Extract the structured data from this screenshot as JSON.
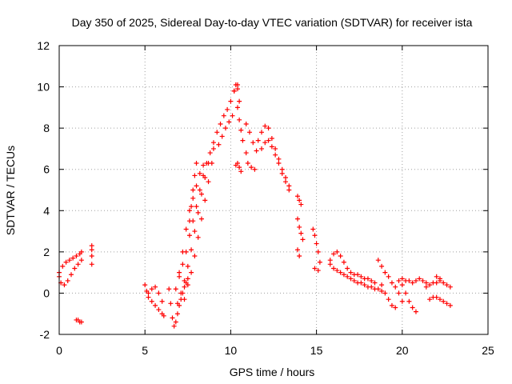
{
  "chart_data": {
    "type": "scatter",
    "title": "Day 350 of 2025, Sidereal Day-to-day VTEC variation (SDTVAR) for receiver ista",
    "xlabel": "GPS time / hours",
    "ylabel": "SDTVAR / TECUs",
    "xlim": [
      0,
      25
    ],
    "ylim": [
      -2,
      12
    ],
    "xticks": [
      0,
      5,
      10,
      15,
      20,
      25
    ],
    "yticks": [
      -2,
      0,
      2,
      4,
      6,
      8,
      10,
      12
    ],
    "grid": true,
    "marker": "+",
    "color": "#ff0000",
    "segments": [
      {
        "name": "early-rise",
        "x": [
          0.0,
          0.2,
          0.4,
          0.6,
          0.8,
          1.0,
          1.2,
          1.3
        ],
        "y": [
          1.0,
          1.3,
          1.5,
          1.6,
          1.7,
          1.8,
          1.9,
          2.0
        ]
      },
      {
        "name": "early-low",
        "x": [
          0.0,
          0.1,
          0.3,
          0.5,
          0.7,
          0.9,
          1.1,
          1.3
        ],
        "y": [
          0.8,
          0.5,
          0.4,
          0.6,
          0.9,
          1.2,
          1.4,
          1.6
        ]
      },
      {
        "name": "outlier-neg",
        "x": [
          1.0,
          1.1,
          1.2,
          1.3
        ],
        "y": [
          -1.3,
          -1.3,
          -1.4,
          -1.4
        ]
      },
      {
        "name": "outlier-2h",
        "x": [
          1.9,
          1.9,
          1.9,
          1.9
        ],
        "y": [
          2.3,
          2.1,
          1.8,
          1.4
        ]
      },
      {
        "name": "morning-a",
        "x": [
          5.0,
          5.1,
          5.2,
          5.4,
          5.6,
          5.8,
          6.0,
          6.1
        ],
        "y": [
          0.4,
          0.1,
          -0.2,
          -0.4,
          -0.6,
          -0.8,
          -1.0,
          -1.1
        ]
      },
      {
        "name": "morning-b",
        "x": [
          5.2,
          5.4,
          5.6,
          5.8,
          6.0
        ],
        "y": [
          0.0,
          0.2,
          0.3,
          0.0,
          -0.4
        ]
      },
      {
        "name": "dip",
        "x": [
          6.4,
          6.5,
          6.6,
          6.7,
          6.8,
          6.9,
          7.0,
          7.1,
          7.2,
          7.3,
          7.4,
          7.5
        ],
        "y": [
          0.2,
          -0.5,
          -1.2,
          -1.6,
          -1.4,
          -1.0,
          -0.6,
          -0.3,
          0.0,
          0.3,
          0.5,
          0.7
        ]
      },
      {
        "name": "rise-a",
        "x": [
          6.8,
          7.0,
          7.2,
          7.4,
          7.6,
          7.8,
          8.0,
          8.2,
          8.4,
          8.6,
          8.8,
          9.0,
          9.2,
          9.4,
          9.6,
          9.8,
          10.0,
          10.2,
          10.4
        ],
        "y": [
          0.2,
          0.8,
          1.4,
          2.0,
          2.8,
          3.5,
          4.2,
          5.0,
          5.7,
          6.3,
          6.8,
          7.3,
          7.8,
          8.2,
          8.6,
          8.9,
          9.3,
          9.8,
          10.1
        ]
      },
      {
        "name": "rise-b",
        "x": [
          6.9,
          7.1,
          7.3,
          7.5,
          7.7,
          7.9,
          8.1,
          8.3,
          8.5,
          8.7
        ],
        "y": [
          -0.5,
          0.0,
          0.6,
          1.3,
          2.1,
          3.0,
          3.9,
          4.8,
          5.6,
          6.3
        ]
      },
      {
        "name": "rise-c",
        "x": [
          7.0,
          7.2,
          7.4,
          7.6,
          7.8,
          8.0,
          8.2,
          8.4
        ],
        "y": [
          1.0,
          2.0,
          3.1,
          4.0,
          4.6,
          5.2,
          5.8,
          6.2
        ]
      },
      {
        "name": "rise-d",
        "x": [
          7.3,
          7.5,
          7.7,
          7.9,
          8.1,
          8.3,
          8.5,
          8.7,
          8.9,
          9.0
        ],
        "y": [
          -0.3,
          0.4,
          1.0,
          1.8,
          2.7,
          3.6,
          4.5,
          5.4,
          6.3,
          7.0
        ]
      },
      {
        "name": "rise-e",
        "x": [
          7.6,
          7.7,
          7.8,
          7.9,
          8.0
        ],
        "y": [
          3.5,
          4.2,
          5.0,
          5.7,
          6.3
        ]
      },
      {
        "name": "plateau",
        "x": [
          9.3,
          9.5,
          9.7,
          9.9,
          10.1
        ],
        "y": [
          7.2,
          7.6,
          8.0,
          8.3,
          8.6
        ]
      },
      {
        "name": "peak-top",
        "x": [
          10.2,
          10.3,
          10.4,
          10.5
        ],
        "y": [
          9.8,
          10.1,
          9.9,
          9.3
        ]
      },
      {
        "name": "peak-falling",
        "x": [
          10.4,
          10.5,
          10.6,
          10.7,
          10.9
        ],
        "y": [
          9.0,
          8.4,
          7.9,
          7.4,
          6.8
        ]
      },
      {
        "name": "outlier-10h",
        "x": [
          10.3,
          10.4,
          10.5,
          10.6
        ],
        "y": [
          6.2,
          6.3,
          6.1,
          5.9
        ]
      },
      {
        "name": "afternoon-a",
        "x": [
          10.9,
          11.1,
          11.3,
          11.5
        ],
        "y": [
          8.2,
          7.8,
          7.3,
          6.9
        ]
      },
      {
        "name": "afternoon-b",
        "x": [
          11.0,
          11.2,
          11.4
        ],
        "y": [
          6.3,
          6.1,
          6.0
        ]
      },
      {
        "name": "afternoon-c",
        "x": [
          11.6,
          11.8,
          12.0,
          12.2,
          12.4,
          12.6,
          12.8,
          13.0,
          13.2,
          13.4
        ],
        "y": [
          7.4,
          7.8,
          8.1,
          8.0,
          7.5,
          7.0,
          6.5,
          6.0,
          5.6,
          5.2
        ]
      },
      {
        "name": "afternoon-d",
        "x": [
          11.8,
          12.0,
          12.2,
          12.4,
          12.6,
          12.8,
          13.0,
          13.2,
          13.4
        ],
        "y": [
          7.0,
          7.3,
          7.4,
          7.1,
          6.7,
          6.3,
          5.8,
          5.4,
          5.0
        ]
      },
      {
        "name": "pm-14h-a",
        "x": [
          13.9,
          14.0,
          14.1
        ],
        "y": [
          4.7,
          4.5,
          4.3
        ]
      },
      {
        "name": "pm-14h-b",
        "x": [
          13.9,
          14.0,
          14.1,
          14.2
        ],
        "y": [
          3.6,
          3.2,
          2.9,
          2.6
        ]
      },
      {
        "name": "pm-14h-c",
        "x": [
          13.9,
          14.0
        ],
        "y": [
          2.1,
          1.8
        ]
      },
      {
        "name": "pm-15h",
        "x": [
          14.8,
          14.9,
          15.0,
          15.1,
          15.2
        ],
        "y": [
          3.1,
          2.8,
          2.4,
          2.0,
          1.5
        ]
      },
      {
        "name": "pm-15h-b",
        "x": [
          14.9,
          15.1
        ],
        "y": [
          1.2,
          1.1
        ]
      },
      {
        "name": "evening-a",
        "x": [
          15.8,
          16.0,
          16.2,
          16.4,
          16.6,
          16.8,
          17.0,
          17.2,
          17.4,
          17.6,
          17.8,
          18.0,
          18.2,
          18.4
        ],
        "y": [
          1.6,
          1.9,
          2.0,
          1.8,
          1.5,
          1.2,
          1.0,
          0.9,
          0.9,
          0.8,
          0.7,
          0.7,
          0.6,
          0.5
        ]
      },
      {
        "name": "evening-b",
        "x": [
          15.8,
          16.0,
          16.2,
          16.4,
          16.6,
          16.8,
          17.0,
          17.2,
          17.4,
          17.6,
          17.8,
          18.0,
          18.2,
          18.4,
          18.6,
          18.8
        ],
        "y": [
          1.4,
          1.2,
          1.1,
          1.0,
          0.9,
          0.8,
          0.7,
          0.6,
          0.5,
          0.5,
          0.4,
          0.3,
          0.3,
          0.2,
          0.2,
          0.1
        ]
      },
      {
        "name": "evening-c",
        "x": [
          18.6,
          18.8,
          19.0,
          19.2,
          19.4,
          19.6,
          19.8,
          20.0
        ],
        "y": [
          1.6,
          1.3,
          1.0,
          0.8,
          0.5,
          0.3,
          0.0,
          -0.4
        ]
      },
      {
        "name": "evening-d",
        "x": [
          18.8,
          19.0,
          19.2,
          19.4,
          19.6
        ],
        "y": [
          0.4,
          0.0,
          -0.3,
          -0.6,
          -0.7
        ]
      },
      {
        "name": "evening-e",
        "x": [
          19.8,
          20.0,
          20.2,
          20.4,
          20.6,
          20.8,
          21.0,
          21.2,
          21.4
        ],
        "y": [
          0.6,
          0.7,
          0.6,
          0.6,
          0.5,
          0.6,
          0.7,
          0.6,
          0.5
        ]
      },
      {
        "name": "evening-f",
        "x": [
          20.0,
          20.2,
          20.4,
          20.6,
          20.8
        ],
        "y": [
          0.4,
          0.0,
          -0.4,
          -0.7,
          -0.9
        ]
      },
      {
        "name": "late-a",
        "x": [
          21.4,
          21.6,
          21.8,
          22.0,
          22.2,
          22.4,
          22.6,
          22.8
        ],
        "y": [
          0.3,
          0.4,
          0.5,
          0.5,
          0.6,
          0.5,
          0.4,
          0.3
        ]
      },
      {
        "name": "late-b",
        "x": [
          21.6,
          21.8,
          22.0,
          22.2,
          22.4,
          22.6,
          22.8
        ],
        "y": [
          -0.3,
          -0.2,
          -0.2,
          -0.3,
          -0.4,
          -0.5,
          -0.6
        ]
      },
      {
        "name": "late-c",
        "x": [
          22.0,
          22.2
        ],
        "y": [
          0.8,
          0.7
        ]
      }
    ]
  }
}
